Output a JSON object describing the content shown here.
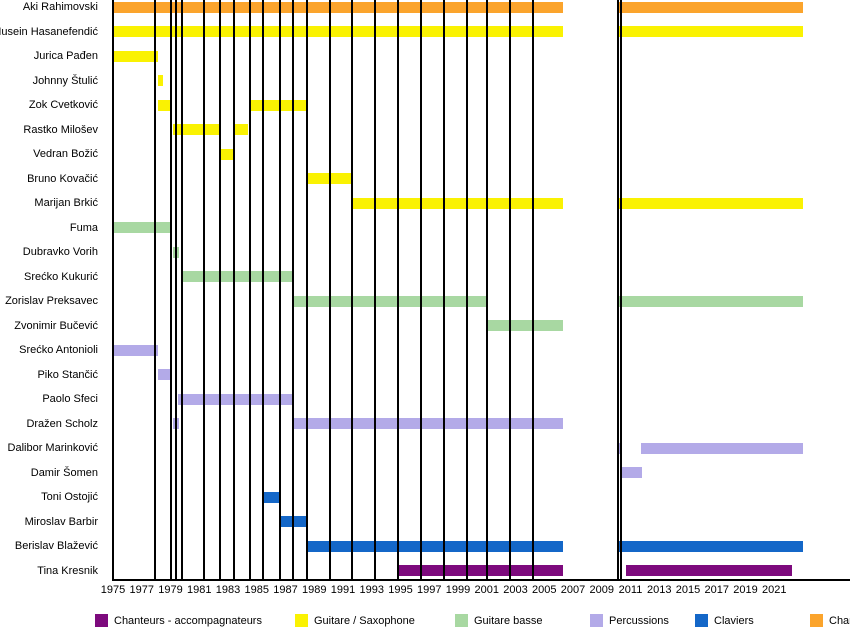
{
  "chart_data": {
    "type": "timeline",
    "title": "",
    "x_axis": {
      "start": 1975,
      "end": 2023,
      "tick_interval": 2,
      "ticks": [
        1975,
        1977,
        1979,
        1981,
        1983,
        1985,
        1987,
        1989,
        1991,
        1993,
        1995,
        1997,
        1999,
        2001,
        2003,
        2005,
        2007,
        2009,
        2011,
        2013,
        2015,
        2017,
        2019,
        2021
      ]
    },
    "grid": "vertical-album-markers",
    "album_markers": [
      1977.9,
      1979.0,
      1979.35,
      1979.8,
      1981.3,
      1982.45,
      1983.4,
      1984.5,
      1985.4,
      1986.6,
      1987.55,
      1988.5,
      1990.1,
      1991.6,
      1993.2,
      1994.8,
      1996.4,
      1998.0,
      1999.6,
      2001.0,
      2002.6,
      2004.2,
      2010.1,
      2010.35
    ],
    "roles": {
      "chanteurs": {
        "label": "Chanteurs",
        "color": "#FBA42C"
      },
      "guitare_saxophone": {
        "label": "Guitare / Saxophone",
        "color": "#FAF202"
      },
      "guitare_basse": {
        "label": "Guitare basse",
        "color": "#A8D8A2"
      },
      "percussions": {
        "label": "Percussions",
        "color": "#B3AAE8"
      },
      "claviers": {
        "label": "Claviers",
        "color": "#1467C8"
      },
      "chanteurs_accompagnateurs": {
        "label": "Chanteurs - accompagnateurs",
        "color": "#7D0A7D"
      }
    },
    "legend": [
      {
        "label": "Chanteurs - accompagnateurs",
        "color": "#7D0A7D"
      },
      {
        "label": "Guitare / Saxophone",
        "color": "#FAF202"
      },
      {
        "label": "Guitare basse",
        "color": "#A8D8A2"
      },
      {
        "label": "Percussions",
        "color": "#B3AAE8"
      },
      {
        "label": "Claviers",
        "color": "#1467C8"
      },
      {
        "label": "Chanteurs",
        "color": "#FBA42C"
      }
    ],
    "members": [
      {
        "name": "Aki Rahimovski",
        "role": "chanteurs",
        "segments": [
          [
            1975,
            2006.3
          ],
          [
            2010.1,
            2023
          ]
        ]
      },
      {
        "name": "Husein Hasanefendić",
        "role": "guitare_saxophone",
        "segments": [
          [
            1975,
            2006.3
          ],
          [
            2010.1,
            2023
          ]
        ]
      },
      {
        "name": "Jurica Pađen",
        "role": "guitare_saxophone",
        "segments": [
          [
            1975,
            1978.1
          ]
        ]
      },
      {
        "name": "Johnny Štulić",
        "role": "guitare_saxophone",
        "segments": [
          [
            1978.15,
            1978.5
          ]
        ]
      },
      {
        "name": "Zok Cvetković",
        "role": "guitare_saxophone",
        "segments": [
          [
            1978.1,
            1979.1
          ],
          [
            1984.5,
            1988.5
          ]
        ]
      },
      {
        "name": "Rastko Milošev",
        "role": "guitare_saxophone",
        "segments": [
          [
            1979.2,
            1982.4
          ],
          [
            1983.4,
            1984.4
          ]
        ]
      },
      {
        "name": "Vedran Božić",
        "role": "guitare_saxophone",
        "segments": [
          [
            1982.4,
            1983.4
          ]
        ]
      },
      {
        "name": "Bruno Kovačić",
        "role": "guitare_saxophone",
        "segments": [
          [
            1988.5,
            1991.6
          ]
        ]
      },
      {
        "name": "Marijan Brkić",
        "role": "guitare_saxophone",
        "segments": [
          [
            1991.6,
            2006.3
          ],
          [
            2010.1,
            2023
          ]
        ]
      },
      {
        "name": "Fuma",
        "role": "guitare_basse",
        "segments": [
          [
            1975,
            1979.1
          ]
        ]
      },
      {
        "name": "Dubravko Vorih",
        "role": "guitare_basse",
        "segments": [
          [
            1979.2,
            1979.6
          ]
        ]
      },
      {
        "name": "Srećko Kukurić",
        "role": "guitare_basse",
        "segments": [
          [
            1979.7,
            1987.5
          ]
        ]
      },
      {
        "name": "Zorislav Preksavec",
        "role": "guitare_basse",
        "segments": [
          [
            1987.6,
            2001.0
          ],
          [
            2010.1,
            2023
          ]
        ]
      },
      {
        "name": "Zvonimir Bučević",
        "role": "guitare_basse",
        "segments": [
          [
            2001.0,
            2006.3
          ]
        ]
      },
      {
        "name": "Srećko Antonioli",
        "role": "percussions",
        "segments": [
          [
            1975,
            1978.1
          ]
        ]
      },
      {
        "name": "Piko Stančić",
        "role": "percussions",
        "segments": [
          [
            1978.1,
            1979.1
          ]
        ]
      },
      {
        "name": "Paolo Sfeci",
        "role": "percussions",
        "segments": [
          [
            1979.5,
            1987.5
          ]
        ]
      },
      {
        "name": "Dražen Scholz",
        "role": "percussions",
        "segments": [
          [
            1979.2,
            1979.6
          ],
          [
            1987.6,
            2006.3
          ]
        ]
      },
      {
        "name": "Dalibor Marinković",
        "role": "percussions",
        "segments": [
          [
            2010.1,
            2010.4
          ],
          [
            2011.7,
            2023
          ]
        ]
      },
      {
        "name": "Damir Šomen",
        "role": "percussions",
        "segments": [
          [
            2010.4,
            2011.8
          ]
        ]
      },
      {
        "name": "Toni Ostojić",
        "role": "claviers",
        "segments": [
          [
            1985.4,
            1986.6
          ]
        ]
      },
      {
        "name": "Miroslav Barbir",
        "role": "claviers",
        "segments": [
          [
            1986.6,
            1988.5
          ]
        ]
      },
      {
        "name": "Berislav Blažević",
        "role": "claviers",
        "segments": [
          [
            1988.5,
            2006.3
          ],
          [
            2010.1,
            2023
          ]
        ]
      },
      {
        "name": "Tina Kresnik",
        "role": "chanteurs_accompagnateurs",
        "segments": [
          [
            1994.8,
            2006.3
          ],
          [
            2010.7,
            2022.2
          ]
        ]
      }
    ]
  }
}
